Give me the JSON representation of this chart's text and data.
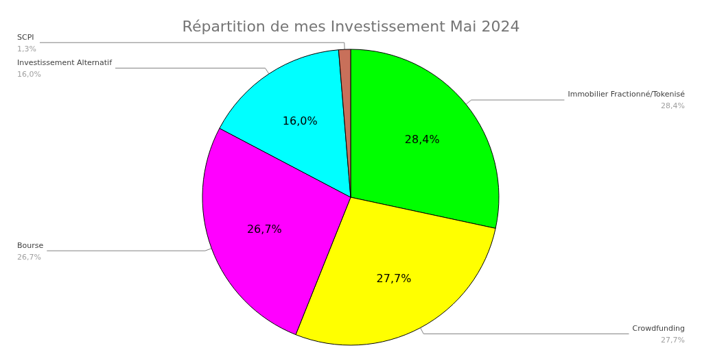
{
  "chart_data": {
    "type": "pie",
    "title": "Répartition de mes Investissement Mai 2024",
    "categories": [
      "Immobilier Fractionné/Tokenisé",
      "Crowdfunding",
      "Bourse",
      "Investissement Alternatif",
      "SCPI"
    ],
    "values": [
      28.4,
      27.7,
      26.7,
      16.0,
      1.3
    ],
    "colors": [
      "#00ff00",
      "#ffff00",
      "#ff00ff",
      "#00ffff",
      "#c8705a"
    ],
    "value_labels": [
      "28,4%",
      "27,7%",
      "26,7%",
      "16,0%",
      "1,3%"
    ],
    "legend": false
  }
}
